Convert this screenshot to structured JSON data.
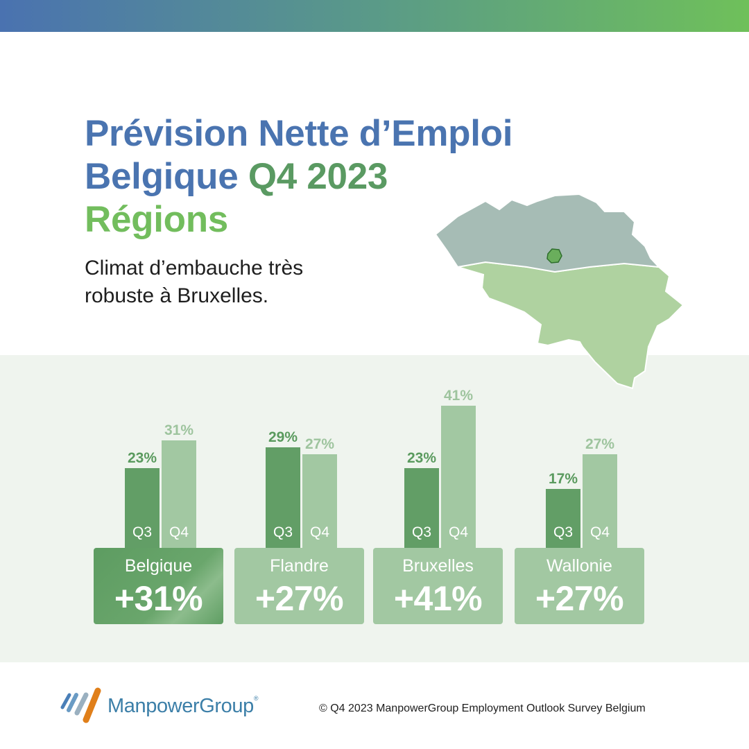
{
  "header": {
    "title_line1": "Prévision Nette d’Emploi",
    "title_line2a": "Belgique",
    "title_line2b": "Q4 2023",
    "title_line3": "Régions",
    "subtitle": "Climat d’embauche très robuste à Bruxelles."
  },
  "colors": {
    "blue": "#4a74b0",
    "dark_green": "#629e66",
    "light_green": "#a2c8a2",
    "bright_green": "#72bd5d"
  },
  "chart_data": {
    "type": "bar",
    "categories": [
      "Belgique",
      "Flandre",
      "Bruxelles",
      "Wallonie"
    ],
    "series": [
      {
        "name": "Q3",
        "values": [
          23,
          29,
          23,
          17
        ],
        "labels": [
          "23%",
          "29%",
          "23%",
          "17%"
        ]
      },
      {
        "name": "Q4",
        "values": [
          31,
          27,
          41,
          27
        ],
        "labels": [
          "31%",
          "27%",
          "41%",
          "27%"
        ]
      }
    ],
    "totals": [
      "+31%",
      "+27%",
      "+41%",
      "+27%"
    ],
    "ylim": [
      0,
      45
    ],
    "grid": false,
    "legend": "none"
  },
  "footer": {
    "logo_text": "ManpowerGroup",
    "logo_mark": "®",
    "copyright": "© Q4 2023 ManpowerGroup Employment Outlook Survey Belgium"
  }
}
